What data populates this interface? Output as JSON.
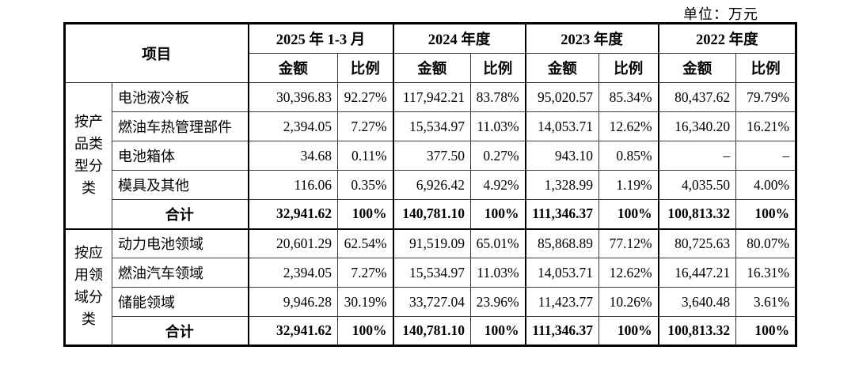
{
  "unit_label": "单位：万元",
  "table": {
    "corner_header": "项目",
    "periods": [
      {
        "label": "2025 年 1-3 月"
      },
      {
        "label": "2024 年度"
      },
      {
        "label": "2023 年度"
      },
      {
        "label": "2022 年度"
      }
    ],
    "subheaders": {
      "amount": "金额",
      "ratio": "比例"
    },
    "groups": [
      {
        "label": "按产品类型分类",
        "rows": [
          {
            "name": "电池液冷板",
            "values": [
              "30,396.83",
              "92.27%",
              "117,942.21",
              "83.78%",
              "95,020.57",
              "85.34%",
              "80,437.62",
              "79.79%"
            ]
          },
          {
            "name": "燃油车热管理部件",
            "values": [
              "2,394.05",
              "7.27%",
              "15,534.97",
              "11.03%",
              "14,053.71",
              "12.62%",
              "16,340.20",
              "16.21%"
            ]
          },
          {
            "name": "电池箱体",
            "values": [
              "34.68",
              "0.11%",
              "377.50",
              "0.27%",
              "943.10",
              "0.85%",
              "–",
              "–"
            ]
          },
          {
            "name": "模具及其他",
            "values": [
              "116.06",
              "0.35%",
              "6,926.42",
              "4.92%",
              "1,328.99",
              "1.19%",
              "4,035.50",
              "4.00%"
            ]
          }
        ],
        "total": {
          "name": "合计",
          "values": [
            "32,941.62",
            "100%",
            "140,781.10",
            "100%",
            "111,346.37",
            "100%",
            "100,813.32",
            "100%"
          ]
        }
      },
      {
        "label": "按应用领域分类",
        "rows": [
          {
            "name": "动力电池领域",
            "values": [
              "20,601.29",
              "62.54%",
              "91,519.09",
              "65.01%",
              "85,868.89",
              "77.12%",
              "80,725.63",
              "80.07%"
            ]
          },
          {
            "name": "燃油汽车领域",
            "values": [
              "2,394.05",
              "7.27%",
              "15,534.97",
              "11.03%",
              "14,053.71",
              "12.62%",
              "16,447.21",
              "16.31%"
            ]
          },
          {
            "name": "储能领域",
            "values": [
              "9,946.28",
              "30.19%",
              "33,727.04",
              "23.96%",
              "11,423.77",
              "10.26%",
              "3,640.48",
              "3.61%"
            ]
          }
        ],
        "total": {
          "name": "合计",
          "values": [
            "32,941.62",
            "100%",
            "140,781.10",
            "100%",
            "111,346.37",
            "100%",
            "100,813.32",
            "100%"
          ]
        }
      }
    ]
  }
}
